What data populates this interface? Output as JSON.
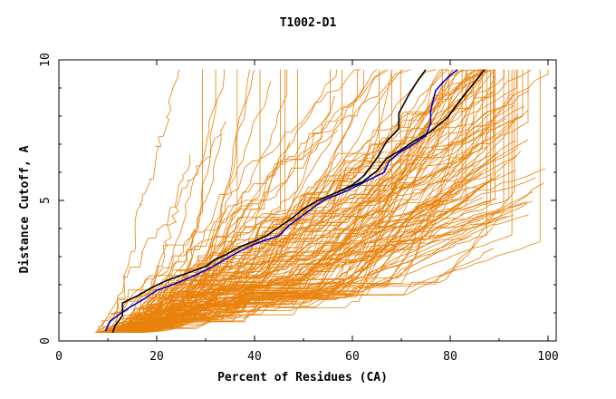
{
  "chart_data": {
    "type": "line",
    "title": "T1002-D1",
    "xlabel": "Percent of Residues (CA)",
    "ylabel": "Distance Cutoff, A",
    "xlim": [
      0,
      100
    ],
    "ylim": [
      0,
      10
    ],
    "x_ticks": [
      0,
      20,
      40,
      60,
      80,
      100
    ],
    "y_ticks": [
      0,
      5,
      10
    ],
    "grid": false,
    "background_model_color": "#e8820c",
    "background_model_count": 150,
    "background_note": "Many orange curves (one per prediction model) spread from ~8% to 100% of residues.",
    "series": [
      {
        "name": "highlight-blue",
        "color": "#0000cc",
        "x": [
          9.5,
          10.5,
          12.0,
          14.5,
          17.5,
          20.0,
          24.0,
          28.0,
          31.0,
          33.5,
          36.5,
          40.0,
          45.0,
          47.0,
          50.5,
          54.0,
          59.0,
          63.0,
          66.5,
          67.5,
          70.0,
          72.5,
          75.0,
          76.0,
          76.0,
          77.0,
          78.5,
          80.0,
          81.5
        ],
        "y": [
          0.35,
          0.7,
          0.9,
          1.2,
          1.5,
          1.8,
          2.05,
          2.35,
          2.6,
          2.85,
          3.15,
          3.45,
          3.75,
          4.1,
          4.55,
          5.0,
          5.35,
          5.7,
          6.0,
          6.4,
          6.75,
          7.0,
          7.3,
          7.75,
          8.2,
          8.9,
          9.2,
          9.45,
          9.65
        ]
      },
      {
        "name": "highlight-black",
        "color": "#000000",
        "x": [
          11.0,
          11.5,
          13.0,
          13.0,
          16.0,
          19.0,
          22.0,
          26.0,
          30.0,
          32.0,
          34.5,
          37.0,
          40.0,
          42.5,
          45.0,
          47.5,
          50.0,
          53.0,
          57.0,
          62.0,
          65.0,
          67.0,
          70.0,
          72.5,
          76.0,
          79.5,
          82.0,
          84.5,
          87.0
        ],
        "y": [
          0.3,
          0.55,
          0.9,
          1.35,
          1.6,
          1.9,
          2.15,
          2.4,
          2.65,
          2.9,
          3.1,
          3.35,
          3.55,
          3.75,
          4.05,
          4.35,
          4.7,
          5.0,
          5.3,
          5.65,
          6.05,
          6.5,
          6.8,
          7.1,
          7.45,
          7.95,
          8.55,
          9.1,
          9.65
        ]
      },
      {
        "name": "highlight-black-upper",
        "color": "#000000",
        "x": [
          57.0,
          60.0,
          62.5,
          65.0,
          67.0,
          69.5,
          69.5,
          71.5,
          73.5,
          75.0
        ],
        "y": [
          5.3,
          5.55,
          5.9,
          6.5,
          7.1,
          7.55,
          8.1,
          8.75,
          9.3,
          9.65
        ]
      }
    ]
  }
}
